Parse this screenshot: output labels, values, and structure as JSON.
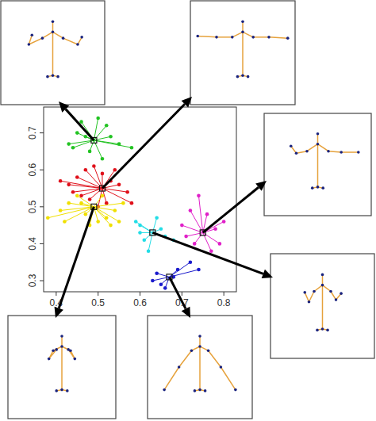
{
  "chart_data": {
    "type": "scatter",
    "xlim": [
      0.37,
      0.83
    ],
    "ylim": [
      0.27,
      0.77
    ],
    "xticks": [
      0.4,
      0.5,
      0.6,
      0.7,
      0.8
    ],
    "yticks": [
      0.3,
      0.4,
      0.5,
      0.6,
      0.7
    ],
    "grid": false,
    "marker": "circle",
    "line_style": "solid",
    "series": [
      {
        "color": "#22c322",
        "center": {
          "x": 0.49,
          "y": 0.68
        },
        "x": [
          0.43,
          0.44,
          0.46,
          0.47,
          0.5,
          0.52,
          0.53,
          0.55,
          0.58,
          0.48,
          0.51,
          0.45
        ],
        "values": [
          0.67,
          0.66,
          0.73,
          0.69,
          0.74,
          0.72,
          0.69,
          0.67,
          0.66,
          0.65,
          0.63,
          0.7
        ]
      },
      {
        "color": "#e0101a",
        "center": {
          "x": 0.51,
          "y": 0.55
        },
        "x": [
          0.41,
          0.43,
          0.45,
          0.47,
          0.49,
          0.51,
          0.53,
          0.55,
          0.57,
          0.58,
          0.46,
          0.48,
          0.52,
          0.5,
          0.44,
          0.54
        ],
        "values": [
          0.57,
          0.56,
          0.58,
          0.6,
          0.61,
          0.59,
          0.57,
          0.56,
          0.54,
          0.51,
          0.53,
          0.52,
          0.51,
          0.5,
          0.54,
          0.6
        ]
      },
      {
        "color": "#f0e000",
        "center": {
          "x": 0.49,
          "y": 0.5
        },
        "x": [
          0.38,
          0.41,
          0.43,
          0.45,
          0.47,
          0.48,
          0.5,
          0.52,
          0.54,
          0.56,
          0.55,
          0.46,
          0.51,
          0.53,
          0.42
        ],
        "values": [
          0.47,
          0.49,
          0.51,
          0.53,
          0.48,
          0.45,
          0.46,
          0.47,
          0.49,
          0.51,
          0.46,
          0.51,
          0.53,
          0.45,
          0.46
        ]
      },
      {
        "color": "#22dde6",
        "center": {
          "x": 0.63,
          "y": 0.43
        },
        "x": [
          0.59,
          0.6,
          0.61,
          0.62,
          0.64,
          0.66,
          0.68,
          0.6,
          0.65
        ],
        "values": [
          0.46,
          0.45,
          0.41,
          0.38,
          0.47,
          0.42,
          0.41,
          0.43,
          0.44
        ]
      },
      {
        "color": "#e020c8",
        "center": {
          "x": 0.75,
          "y": 0.43
        },
        "x": [
          0.72,
          0.74,
          0.76,
          0.78,
          0.8,
          0.77,
          0.73,
          0.7,
          0.71,
          0.79
        ],
        "values": [
          0.49,
          0.53,
          0.48,
          0.44,
          0.46,
          0.38,
          0.4,
          0.45,
          0.42,
          0.4
        ]
      },
      {
        "color": "#1a1acc",
        "center": {
          "x": 0.67,
          "y": 0.31
        },
        "x": [
          0.63,
          0.64,
          0.66,
          0.69,
          0.72,
          0.74,
          0.68,
          0.65
        ],
        "values": [
          0.3,
          0.32,
          0.28,
          0.33,
          0.35,
          0.33,
          0.31,
          0.29
        ]
      }
    ]
  }
}
